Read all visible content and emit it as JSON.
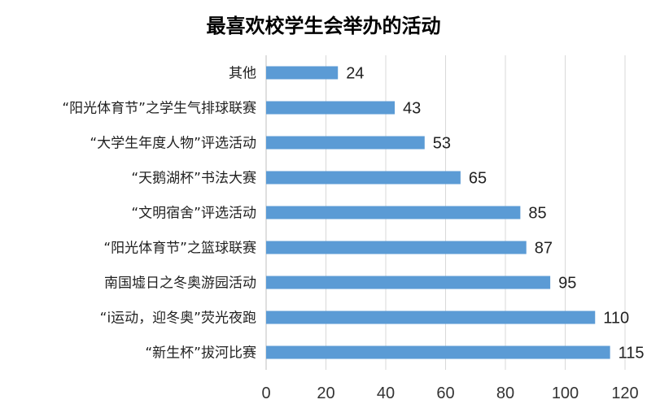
{
  "chart_data": {
    "type": "bar",
    "orientation": "horizontal",
    "title": "最喜欢校学生会举办的活动",
    "categories": [
      "其他",
      "“阳光体育节”之学生气排球联赛",
      "“大学生年度人物”评选活动",
      "“天鹅湖杯”书法大赛",
      "“文明宿舍”评选活动",
      "“阳光体育节”之篮球联赛",
      "南国墟日之冬奥游园活动",
      "“i运动，迎冬奥”荧光夜跑",
      "“新生杯”拔河比赛"
    ],
    "values": [
      24,
      43,
      53,
      65,
      85,
      87,
      95,
      110,
      115
    ],
    "value_labels": [
      "24",
      "43",
      "53",
      "65",
      "85",
      "87",
      "95",
      "110",
      "115"
    ],
    "xlim": [
      0,
      120
    ],
    "ticks": [
      0,
      20,
      40,
      60,
      80,
      100,
      120
    ],
    "tick_labels": [
      "0",
      "20",
      "40",
      "60",
      "80",
      "100",
      "120"
    ],
    "grid": true,
    "bar_color": "#5b9bd5",
    "legend": "none"
  }
}
